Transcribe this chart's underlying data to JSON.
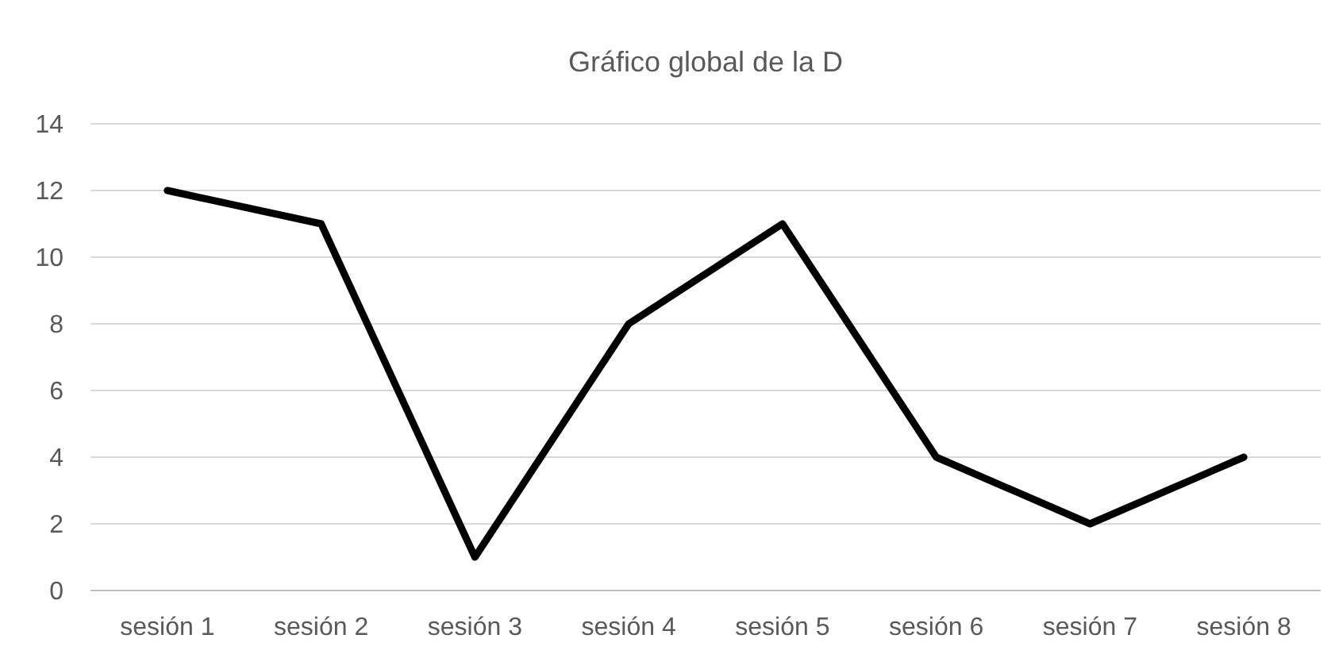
{
  "chart_data": {
    "type": "line",
    "title": "Gráfico global de la D",
    "categories": [
      "sesión 1",
      "sesión 2",
      "sesión 3",
      "sesión 4",
      "sesión 5",
      "sesión 6",
      "sesión 7",
      "sesión 8"
    ],
    "series": [
      {
        "color": "#000000",
        "values": [
          12,
          11,
          1,
          8,
          11,
          4,
          2,
          4
        ]
      }
    ],
    "ylim": [
      0,
      14
    ],
    "yticks": [
      0,
      2,
      4,
      6,
      8,
      10,
      12,
      14
    ],
    "grid": "y",
    "marker": "none",
    "line_style": "solid"
  }
}
